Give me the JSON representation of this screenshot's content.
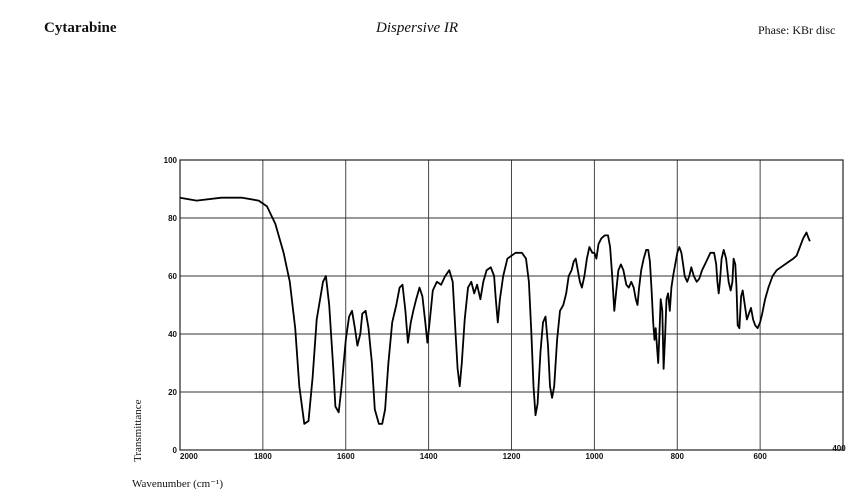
{
  "header": {
    "compound": "Cytarabine",
    "technique": "Dispersive IR",
    "phase": "Phase: KBr disc"
  },
  "chart_data": {
    "type": "line",
    "title": "",
    "xlabel": "Wavenumber (cm⁻¹)",
    "ylabel": "Transmittance",
    "xlim": [
      2000,
      400
    ],
    "ylim": [
      0,
      100
    ],
    "x_ticks": [
      {
        "value": 2000,
        "label": "2000"
      },
      {
        "value": 1800,
        "label": "1800"
      },
      {
        "value": 1600,
        "label": "1600"
      },
      {
        "value": 1400,
        "label": "1400"
      },
      {
        "value": 1200,
        "label": "1200"
      },
      {
        "value": 1000,
        "label": "1000"
      },
      {
        "value": 800,
        "label": "800"
      },
      {
        "value": 600,
        "label": "600"
      },
      {
        "value": 400,
        "label": "400"
      }
    ],
    "y_ticks": [
      {
        "value": 0,
        "label": "0"
      },
      {
        "value": 20,
        "label": "20"
      },
      {
        "value": 40,
        "label": "40"
      },
      {
        "value": 60,
        "label": "60"
      },
      {
        "value": 80,
        "label": "80"
      },
      {
        "value": 100,
        "label": "100"
      }
    ],
    "grid": true,
    "series": [
      {
        "name": "",
        "points": [
          [
            2000,
            87
          ],
          [
            1960,
            86
          ],
          [
            1900,
            87
          ],
          [
            1850,
            87
          ],
          [
            1810,
            86
          ],
          [
            1790,
            84
          ],
          [
            1770,
            78
          ],
          [
            1750,
            68
          ],
          [
            1735,
            58
          ],
          [
            1722,
            42
          ],
          [
            1712,
            22
          ],
          [
            1700,
            9
          ],
          [
            1690,
            10
          ],
          [
            1680,
            25
          ],
          [
            1670,
            45
          ],
          [
            1655,
            58
          ],
          [
            1648,
            60
          ],
          [
            1640,
            50
          ],
          [
            1630,
            28
          ],
          [
            1625,
            15
          ],
          [
            1617,
            13
          ],
          [
            1610,
            22
          ],
          [
            1600,
            38
          ],
          [
            1592,
            46
          ],
          [
            1585,
            48
          ],
          [
            1578,
            42
          ],
          [
            1572,
            36
          ],
          [
            1565,
            40
          ],
          [
            1560,
            47
          ],
          [
            1552,
            48
          ],
          [
            1545,
            42
          ],
          [
            1537,
            30
          ],
          [
            1530,
            14
          ],
          [
            1520,
            9
          ],
          [
            1512,
            9
          ],
          [
            1505,
            14
          ],
          [
            1497,
            30
          ],
          [
            1488,
            44
          ],
          [
            1478,
            50
          ],
          [
            1470,
            56
          ],
          [
            1463,
            57
          ],
          [
            1456,
            48
          ],
          [
            1450,
            37
          ],
          [
            1443,
            44
          ],
          [
            1437,
            48
          ],
          [
            1430,
            52
          ],
          [
            1422,
            56
          ],
          [
            1415,
            53
          ],
          [
            1408,
            44
          ],
          [
            1403,
            37
          ],
          [
            1397,
            45
          ],
          [
            1390,
            55
          ],
          [
            1380,
            58
          ],
          [
            1370,
            57
          ],
          [
            1360,
            60
          ],
          [
            1350,
            62
          ],
          [
            1342,
            58
          ],
          [
            1335,
            40
          ],
          [
            1330,
            28
          ],
          [
            1325,
            22
          ],
          [
            1320,
            30
          ],
          [
            1313,
            45
          ],
          [
            1305,
            56
          ],
          [
            1297,
            58
          ],
          [
            1290,
            54
          ],
          [
            1283,
            57
          ],
          [
            1275,
            52
          ],
          [
            1268,
            58
          ],
          [
            1260,
            62
          ],
          [
            1250,
            63
          ],
          [
            1242,
            60
          ],
          [
            1238,
            52
          ],
          [
            1233,
            44
          ],
          [
            1228,
            52
          ],
          [
            1220,
            60
          ],
          [
            1210,
            66
          ],
          [
            1190,
            68
          ],
          [
            1175,
            68
          ],
          [
            1165,
            66
          ],
          [
            1158,
            58
          ],
          [
            1152,
            40
          ],
          [
            1147,
            22
          ],
          [
            1142,
            12
          ],
          [
            1137,
            16
          ],
          [
            1130,
            34
          ],
          [
            1124,
            44
          ],
          [
            1118,
            46
          ],
          [
            1112,
            36
          ],
          [
            1107,
            22
          ],
          [
            1102,
            18
          ],
          [
            1097,
            22
          ],
          [
            1090,
            38
          ],
          [
            1083,
            48
          ],
          [
            1075,
            50
          ],
          [
            1068,
            54
          ],
          [
            1062,
            60
          ],
          [
            1055,
            62
          ],
          [
            1050,
            65
          ],
          [
            1045,
            66
          ],
          [
            1040,
            62
          ],
          [
            1035,
            58
          ],
          [
            1030,
            56
          ],
          [
            1024,
            60
          ],
          [
            1018,
            66
          ],
          [
            1012,
            70
          ],
          [
            1005,
            68
          ],
          [
            1000,
            68
          ],
          [
            995,
            66
          ],
          [
            990,
            71
          ],
          [
            983,
            73
          ],
          [
            975,
            74
          ],
          [
            967,
            74
          ],
          [
            962,
            70
          ],
          [
            957,
            60
          ],
          [
            952,
            48
          ],
          [
            947,
            55
          ],
          [
            942,
            62
          ],
          [
            936,
            64
          ],
          [
            930,
            62
          ],
          [
            923,
            57
          ],
          [
            917,
            56
          ],
          [
            911,
            58
          ],
          [
            905,
            56
          ],
          [
            900,
            52
          ],
          [
            896,
            50
          ],
          [
            892,
            56
          ],
          [
            887,
            62
          ],
          [
            881,
            66
          ],
          [
            875,
            69
          ],
          [
            870,
            69
          ],
          [
            866,
            65
          ],
          [
            862,
            55
          ],
          [
            858,
            44
          ],
          [
            855,
            38
          ],
          [
            852,
            42
          ],
          [
            849,
            36
          ],
          [
            846,
            30
          ],
          [
            843,
            40
          ],
          [
            840,
            52
          ],
          [
            836,
            48
          ],
          [
            833,
            28
          ],
          [
            829,
            40
          ],
          [
            826,
            52
          ],
          [
            822,
            54
          ],
          [
            818,
            48
          ],
          [
            814,
            56
          ],
          [
            810,
            60
          ],
          [
            805,
            64
          ],
          [
            800,
            68
          ],
          [
            795,
            70
          ],
          [
            790,
            68
          ],
          [
            786,
            64
          ],
          [
            782,
            60
          ],
          [
            776,
            58
          ],
          [
            771,
            60
          ],
          [
            766,
            63
          ],
          [
            760,
            60
          ],
          [
            753,
            58
          ],
          [
            747,
            59
          ],
          [
            740,
            62
          ],
          [
            730,
            65
          ],
          [
            720,
            68
          ],
          [
            711,
            68
          ],
          [
            706,
            64
          ],
          [
            703,
            58
          ],
          [
            700,
            54
          ],
          [
            697,
            58
          ],
          [
            693,
            66
          ],
          [
            688,
            69
          ],
          [
            682,
            66
          ],
          [
            676,
            58
          ],
          [
            671,
            55
          ],
          [
            667,
            58
          ],
          [
            664,
            66
          ],
          [
            660,
            64
          ],
          [
            657,
            56
          ],
          [
            654,
            43
          ],
          [
            650,
            42
          ],
          [
            646,
            53
          ],
          [
            642,
            55
          ],
          [
            637,
            50
          ],
          [
            632,
            45
          ],
          [
            627,
            47
          ],
          [
            622,
            49
          ],
          [
            617,
            45
          ],
          [
            612,
            43
          ],
          [
            606,
            42
          ],
          [
            600,
            44
          ],
          [
            595,
            47
          ],
          [
            588,
            52
          ],
          [
            580,
            56
          ],
          [
            570,
            60
          ],
          [
            560,
            62
          ],
          [
            550,
            63
          ],
          [
            540,
            64
          ],
          [
            530,
            65
          ],
          [
            520,
            66
          ],
          [
            512,
            67
          ],
          [
            504,
            70
          ],
          [
            496,
            73
          ],
          [
            488,
            75
          ],
          [
            483,
            73
          ],
          [
            480,
            72
          ]
        ]
      }
    ]
  }
}
